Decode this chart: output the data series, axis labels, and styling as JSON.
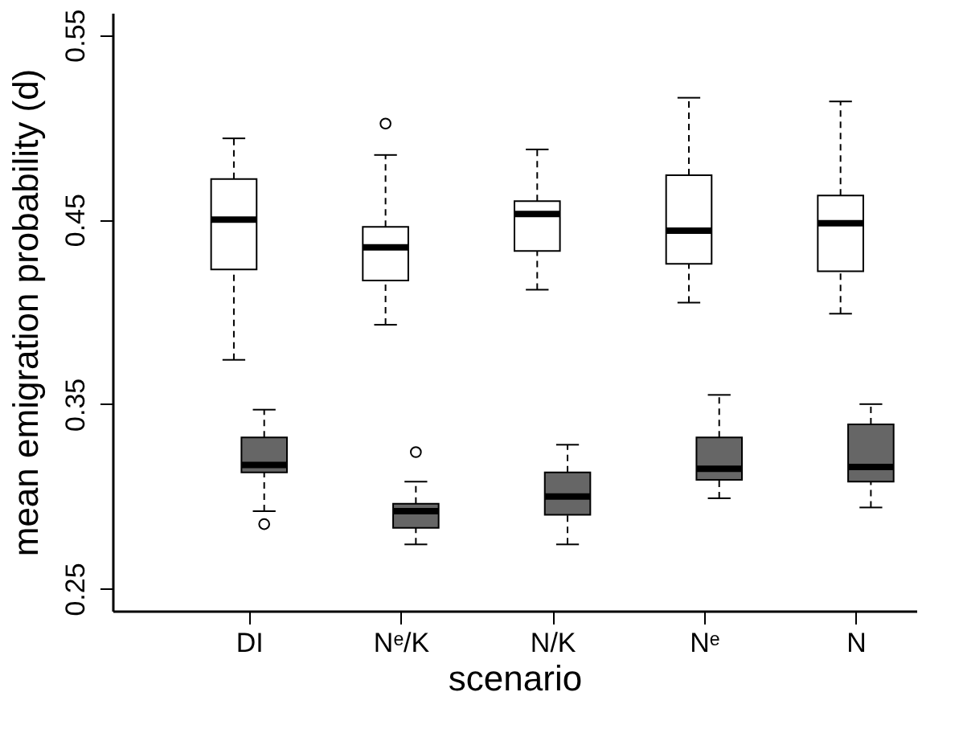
{
  "chart_data": {
    "type": "box",
    "xlabel": "scenario",
    "ylabel": "mean emigration probability (d)",
    "categories": [
      "DI",
      "Nᵉ/K",
      "N/K",
      "Nᵉ",
      "N"
    ],
    "ylim": [
      0.238,
      0.562
    ],
    "yticks": [
      0.25,
      0.35,
      0.45,
      0.55
    ],
    "grid": false,
    "series": [
      {
        "color": "#ffffff",
        "boxes": [
          {
            "low": 0.374,
            "q1": 0.423,
            "median": 0.45,
            "q3": 0.472,
            "high": 0.494
          },
          {
            "low": 0.393,
            "q1": 0.417,
            "median": 0.435,
            "q3": 0.446,
            "high": 0.485,
            "outliers": [
              0.502
            ]
          },
          {
            "low": 0.412,
            "q1": 0.433,
            "median": 0.453,
            "q3": 0.46,
            "high": 0.488
          },
          {
            "low": 0.405,
            "q1": 0.426,
            "median": 0.444,
            "q3": 0.474,
            "high": 0.516
          },
          {
            "low": 0.399,
            "q1": 0.422,
            "median": 0.448,
            "q3": 0.463,
            "high": 0.514
          }
        ]
      },
      {
        "color": "#666666",
        "boxes": [
          {
            "low": 0.292,
            "q1": 0.313,
            "median": 0.317,
            "q3": 0.332,
            "high": 0.347,
            "outliers": [
              0.285
            ]
          },
          {
            "low": 0.274,
            "q1": 0.283,
            "median": 0.292,
            "q3": 0.296,
            "high": 0.308,
            "outliers": [
              0.324
            ]
          },
          {
            "low": 0.274,
            "q1": 0.29,
            "median": 0.3,
            "q3": 0.313,
            "high": 0.328
          },
          {
            "low": 0.299,
            "q1": 0.309,
            "median": 0.315,
            "q3": 0.332,
            "high": 0.355
          },
          {
            "low": 0.294,
            "q1": 0.308,
            "median": 0.316,
            "q3": 0.339,
            "high": 0.35
          }
        ]
      }
    ]
  }
}
